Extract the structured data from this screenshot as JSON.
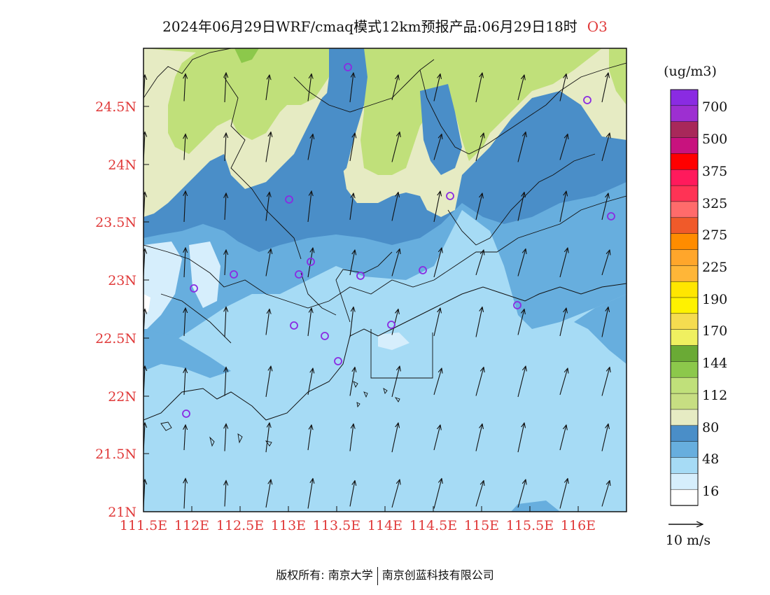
{
  "title": {
    "main": "2024年06月29日WRF/cmaq模式12km预报产品:06月29日18时",
    "species": "O3"
  },
  "footer": {
    "copyright": "版权所有: 南京大学",
    "company": "南京创蓝科技有限公司"
  },
  "map": {
    "lat_ticks": [
      "24.5N",
      "24N",
      "23.5N",
      "23N",
      "22.5N",
      "22N",
      "21.5N",
      "21N"
    ],
    "lon_ticks": [
      "111.5E",
      "112E",
      "112.5E",
      "113E",
      "113.5E",
      "114E",
      "114.5E",
      "115E",
      "115.5E",
      "116E"
    ],
    "lon_range": [
      111.5,
      116.5
    ],
    "lat_range": [
      21.0,
      25.0
    ]
  },
  "legend": {
    "unit": "(ug/m3)",
    "levels": [
      "700",
      "500",
      "375",
      "325",
      "275",
      "225",
      "190",
      "170",
      "144",
      "112",
      "80",
      "48",
      "16"
    ],
    "colors": [
      "#8a2be2",
      "#9d2fd1",
      "#a8285a",
      "#c8127e",
      "#ff0000",
      "#ff1a5c",
      "#ff3355",
      "#ff6b6b",
      "#f05a2a",
      "#ff8c00",
      "#ffa62b",
      "#ffb638",
      "#ffe600",
      "#fff200",
      "#f5dc50",
      "#f0f060",
      "#6aaa35",
      "#8cc84b",
      "#c0e07a",
      "#c7de82",
      "#e6ebc3",
      "#4a8ec8",
      "#67aede",
      "#a6dbf5",
      "#d6eefc",
      "#ffffff"
    ]
  },
  "wind_reference": {
    "label": "10 m/s"
  },
  "stations_color": "#8a2be2"
}
